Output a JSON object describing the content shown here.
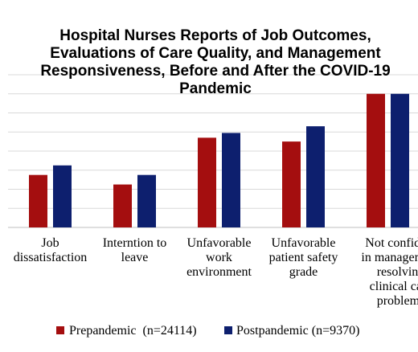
{
  "chart_data": {
    "type": "bar",
    "title": "Hospital Nurses Reports of Job Outcomes,\nEvaluations of Care Quality, and Management\nResponsiveness, Before and After the COVID-19\nPandemic",
    "categories": [
      "Job dissatisfaction",
      "Interntion to leave",
      "Unfavorable work environment",
      "Unfavorable patient safety grade",
      "Not confident in management resolving clinical care problems"
    ],
    "category_label_lines": [
      [
        "Job",
        "dissatisfaction"
      ],
      [
        "Interntion to",
        "leave"
      ],
      [
        "Unfavorable",
        "work",
        "environment"
      ],
      [
        "Unfavorable",
        "patient safety",
        "grade"
      ],
      [
        "Not confident",
        "in management",
        "resolving",
        "clinical care",
        "problems"
      ]
    ],
    "series": [
      {
        "name": "Prepandemic  (n=24114)",
        "color": "#a40e0f",
        "values": [
          27.5,
          22.5,
          47,
          45,
          70
        ]
      },
      {
        "name": "Postpandemic (n=9370)",
        "color": "#0d1f6e",
        "values": [
          32.5,
          27.5,
          49.5,
          53,
          70
        ]
      }
    ],
    "ylim": [
      0,
      80
    ],
    "grid": true,
    "legend": "bottom",
    "xlabel": "",
    "ylabel": ""
  }
}
